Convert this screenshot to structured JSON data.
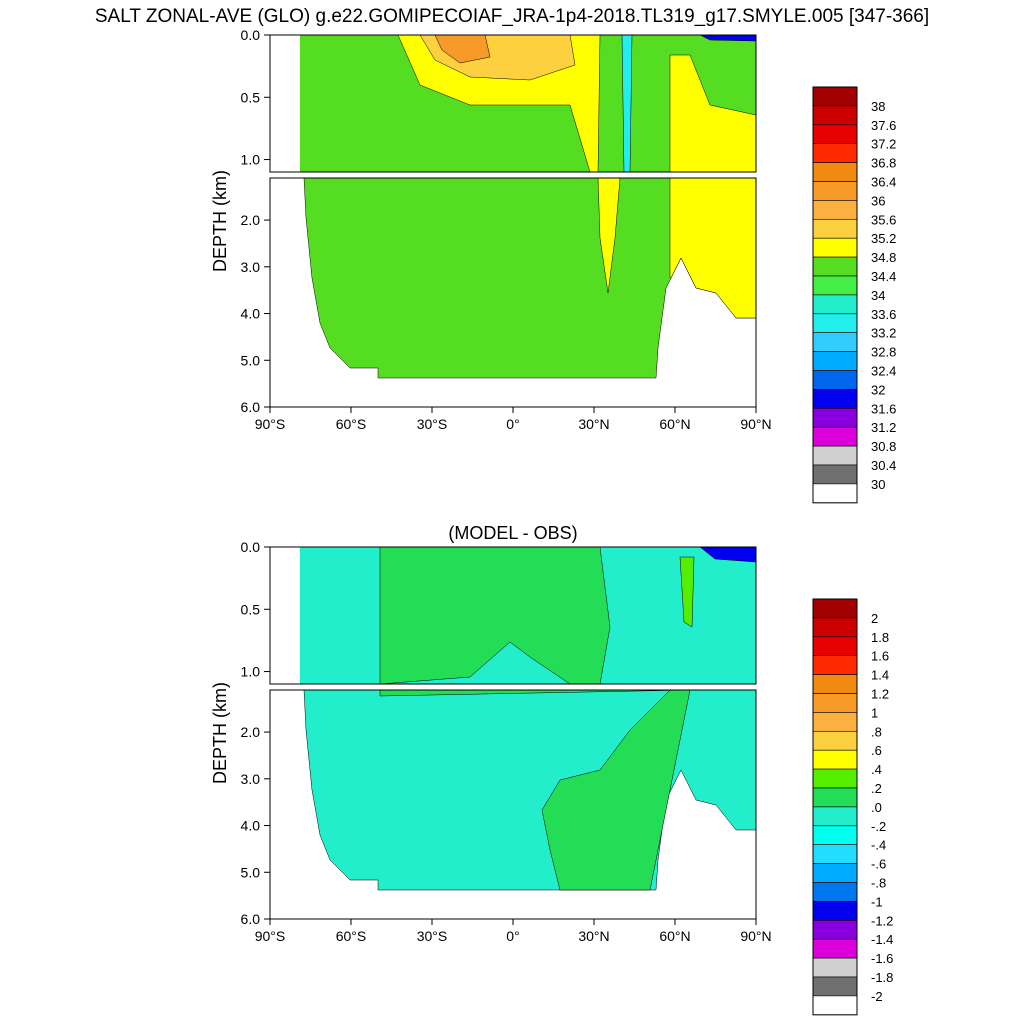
{
  "figure": {
    "title": "SALT ZONAL-AVE (GLO) g.e22.GOMIPECOIAF_JRA-1p4-2018.TL319_g17.SMYLE.005 [347-366]"
  },
  "chart_data": [
    {
      "type": "heatmap",
      "title": "",
      "ylabel": "DEPTH (km)",
      "xlabel": "",
      "xlim": [
        -90,
        90
      ],
      "ylim": [
        0,
        6
      ],
      "y_break": 1.1,
      "x_ticks": [
        "90°S",
        "60°S",
        "30°S",
        "0°",
        "30°N",
        "60°N",
        "90°N"
      ],
      "y_ticks_upper": [
        "0.0",
        "0.5",
        "1.0"
      ],
      "y_ticks_lower": [
        "2.0",
        "3.0",
        "4.0",
        "5.0",
        "6.0"
      ],
      "colorbar": {
        "labels": [
          "38",
          "37.6",
          "37.2",
          "36.8",
          "36.4",
          "36",
          "35.6",
          "35.2",
          "34.8",
          "34.4",
          "34",
          "33.6",
          "33.2",
          "32.8",
          "32.4",
          "32",
          "31.6",
          "31.2",
          "30.8",
          "30.4",
          "30"
        ],
        "colors": [
          "#a00000",
          "#cc0000",
          "#e80000",
          "#ff2a00",
          "#f08a10",
          "#f89a28",
          "#fbb040",
          "#fdd040",
          "#ffff00",
          "#55dd22",
          "#44ee44",
          "#22eecc",
          "#22eeee",
          "#33ccff",
          "#00aaff",
          "#0066ee",
          "#0000ee",
          "#8800dd",
          "#dd00dd",
          "#d0d0d0",
          "#707070",
          "#ffffff"
        ]
      }
    },
    {
      "type": "heatmap",
      "title": "(MODEL - OBS)",
      "ylabel": "DEPTH (km)",
      "xlabel": "",
      "xlim": [
        -90,
        90
      ],
      "ylim": [
        0,
        6
      ],
      "y_break": 1.1,
      "x_ticks": [
        "90°S",
        "60°S",
        "30°S",
        "0°",
        "30°N",
        "60°N",
        "90°N"
      ],
      "y_ticks_upper": [
        "0.0",
        "0.5",
        "1.0"
      ],
      "y_ticks_lower": [
        "2.0",
        "3.0",
        "4.0",
        "5.0",
        "6.0"
      ],
      "colorbar": {
        "labels": [
          "2",
          "1.8",
          "1.6",
          "1.4",
          "1.2",
          "1",
          ".8",
          ".6",
          ".4",
          ".2",
          ".0",
          "-.2",
          "-.4",
          "-.6",
          "-.8",
          "-1",
          "-1.2",
          "-1.4",
          "-1.6",
          "-1.8",
          "-2"
        ],
        "colors": [
          "#a00000",
          "#cc0000",
          "#e80000",
          "#ff2a00",
          "#f08a10",
          "#f89a28",
          "#fbb040",
          "#fdd040",
          "#ffff00",
          "#55ee00",
          "#22dd55",
          "#22eecc",
          "#00ffee",
          "#22ddff",
          "#00aaff",
          "#0077ee",
          "#0000ee",
          "#8800dd",
          "#dd00dd",
          "#d0d0d0",
          "#707070",
          "#ffffff"
        ]
      }
    }
  ]
}
